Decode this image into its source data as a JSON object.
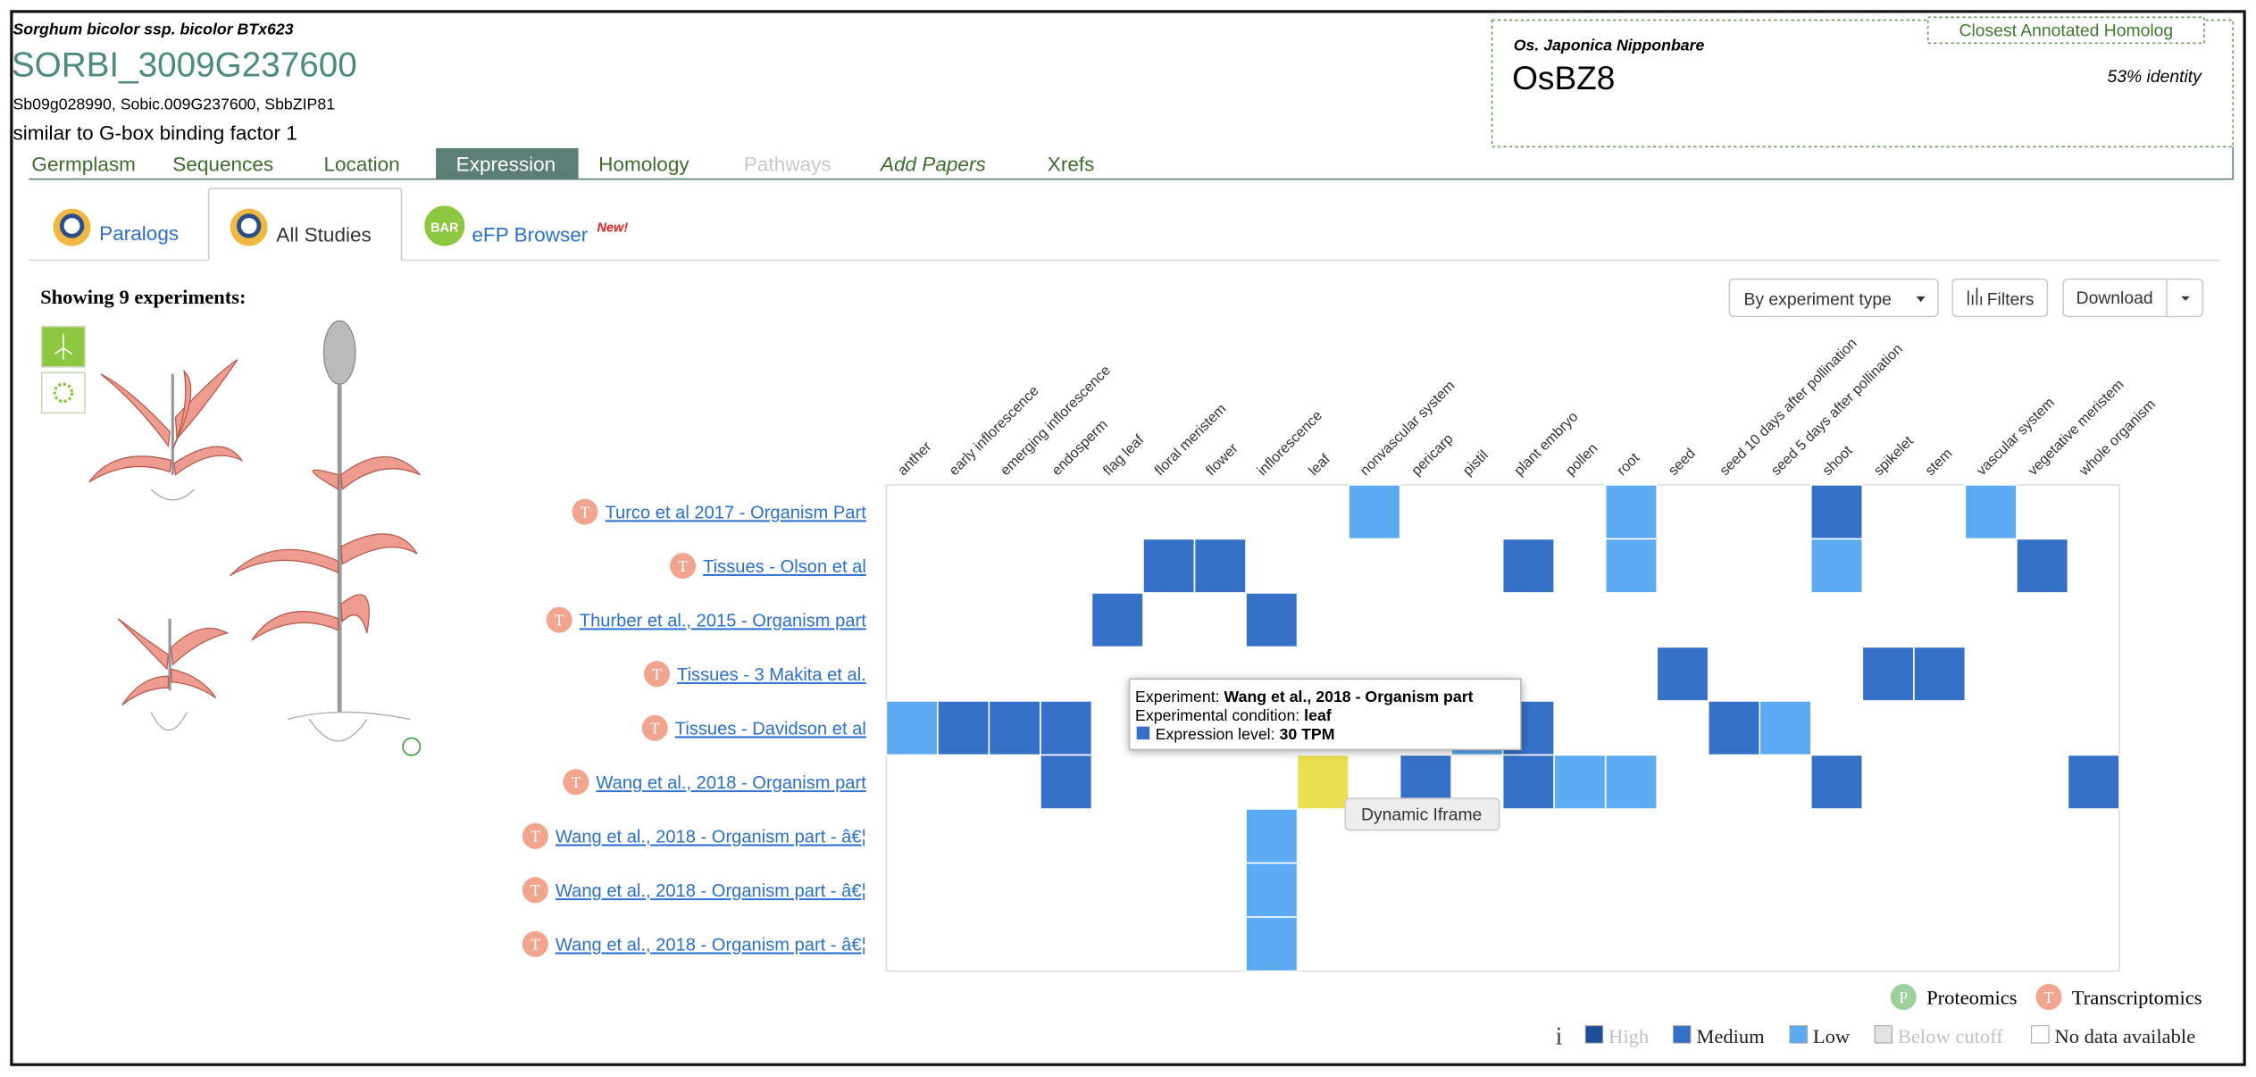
{
  "header": {
    "species": "Sorghum bicolor ssp. bicolor BTx623",
    "gene_id": "SORBI_3009G237600",
    "synonyms": "Sb09g028990, Sobic.009G237600, SbbZIP81",
    "description": "similar to G-box binding factor 1"
  },
  "homolog": {
    "label": "Closest Annotated Homolog",
    "species": "Os. Japonica Nipponbare",
    "name": "OsBZ8",
    "identity": "53% identity"
  },
  "tabs": [
    "Germplasm",
    "Sequences",
    "Location",
    "Expression",
    "Homology",
    "Pathways",
    "Add Papers",
    "Xrefs"
  ],
  "subtabs": {
    "paralogs": "Paralogs",
    "all_studies": "All Studies",
    "efp_icon": "BAR",
    "efp": "eFP Browser",
    "efp_badge": "New!"
  },
  "showing": "Showing 9 experiments:",
  "toolbar": {
    "sort": "By experiment type",
    "filters": "Filters",
    "download": "Download"
  },
  "heatmap": {
    "columns": [
      "anther",
      "early inflorescence",
      "emerging inflorescence",
      "endosperm",
      "flag leaf",
      "floral meristem",
      "flower",
      "inflorescence",
      "leaf",
      "nonvascular system",
      "pericarp",
      "pistil",
      "plant embryo",
      "pollen",
      "root",
      "seed",
      "seed 10 days after pollination",
      "seed 5 days after pollination",
      "shoot",
      "spikelet",
      "stem",
      "vascular system",
      "vegetative meristem",
      "whole organism"
    ],
    "rows": [
      {
        "badge": "T",
        "label": "Turco et al 2017 - Organism Part",
        "cells": [
          null,
          null,
          null,
          null,
          null,
          null,
          null,
          null,
          null,
          "Low",
          null,
          null,
          null,
          null,
          "Low",
          null,
          null,
          null,
          "Medium",
          null,
          null,
          "Low",
          null,
          null
        ]
      },
      {
        "badge": "T",
        "label": "Tissues - Olson et al",
        "cells": [
          null,
          null,
          null,
          null,
          null,
          "Medium",
          "Medium",
          null,
          null,
          null,
          null,
          null,
          "Medium",
          null,
          "Low",
          null,
          null,
          null,
          "Low",
          null,
          null,
          null,
          "Medium",
          null
        ]
      },
      {
        "badge": "T",
        "label": "Thurber et al., 2015 - Organism part",
        "cells": [
          null,
          null,
          null,
          null,
          "Medium",
          null,
          null,
          "Medium",
          null,
          null,
          null,
          null,
          null,
          null,
          null,
          null,
          null,
          null,
          null,
          null,
          null,
          null,
          null,
          null
        ]
      },
      {
        "badge": "T",
        "label": "Tissues - 3 Makita et al.",
        "cells": [
          null,
          null,
          null,
          null,
          null,
          null,
          null,
          null,
          null,
          null,
          null,
          null,
          null,
          null,
          null,
          "Medium",
          null,
          null,
          null,
          "Medium",
          "Medium",
          null,
          null,
          null
        ]
      },
      {
        "badge": "T",
        "label": "Tissues - Davidson et al",
        "cells": [
          "Low",
          "Medium",
          "Medium",
          "Medium",
          null,
          null,
          null,
          null,
          null,
          null,
          null,
          "Low",
          "Medium",
          null,
          null,
          null,
          "Medium",
          "Low",
          null,
          null,
          null,
          null,
          null,
          null
        ]
      },
      {
        "badge": "T",
        "label": "Wang et al., 2018 - Organism part",
        "cells": [
          null,
          null,
          null,
          "Medium",
          null,
          null,
          null,
          null,
          "Medium",
          null,
          "Medium",
          null,
          "Medium",
          "Low",
          "Low",
          null,
          null,
          null,
          "Medium",
          null,
          null,
          null,
          null,
          "Medium"
        ]
      },
      {
        "badge": "T",
        "label": "Wang et al., 2018 - Organism part - â€¦",
        "cells": [
          null,
          null,
          null,
          null,
          null,
          null,
          null,
          "Low",
          null,
          null,
          null,
          null,
          null,
          null,
          null,
          null,
          null,
          null,
          null,
          null,
          null,
          null,
          null,
          null
        ]
      },
      {
        "badge": "T",
        "label": "Wang et al., 2018 - Organism part - â€¦",
        "cells": [
          null,
          null,
          null,
          null,
          null,
          null,
          null,
          "Low",
          null,
          null,
          null,
          null,
          null,
          null,
          null,
          null,
          null,
          null,
          null,
          null,
          null,
          null,
          null,
          null
        ]
      },
      {
        "badge": "T",
        "label": "Wang et al., 2018 - Organism part - â€¦",
        "cells": [
          null,
          null,
          null,
          null,
          null,
          null,
          null,
          "Low",
          null,
          null,
          null,
          null,
          null,
          null,
          null,
          null,
          null,
          null,
          null,
          null,
          null,
          null,
          null,
          null
        ]
      }
    ],
    "highlighted_cell": {
      "row": 5,
      "column": 8,
      "color": "#e9e04f"
    }
  },
  "tooltip": {
    "experiment_label": "Experiment:",
    "experiment": "Wang et al., 2018 - Organism part",
    "condition_label": "Experimental condition:",
    "condition": "leaf",
    "level_label": "Expression level:",
    "level": "30 TPM"
  },
  "iframe_label": "Dynamic Iframe",
  "legend": {
    "types": [
      {
        "badge": "P",
        "label": "Proteomics",
        "color": "#9fcf9a"
      },
      {
        "badge": "T",
        "label": "Transcriptomics",
        "color": "#f2a58e"
      }
    ],
    "info": "i",
    "levels": [
      {
        "label": "High",
        "color": "#1e4e9a",
        "muted": true
      },
      {
        "label": "Medium",
        "color": "#3571c6",
        "muted": false
      },
      {
        "label": "Low",
        "color": "#5caaf2",
        "muted": false
      },
      {
        "label": "Below cutoff",
        "color": "#e2e2e2",
        "muted": true
      },
      {
        "label": "No data available",
        "color": "#ffffff",
        "muted": false
      }
    ]
  }
}
